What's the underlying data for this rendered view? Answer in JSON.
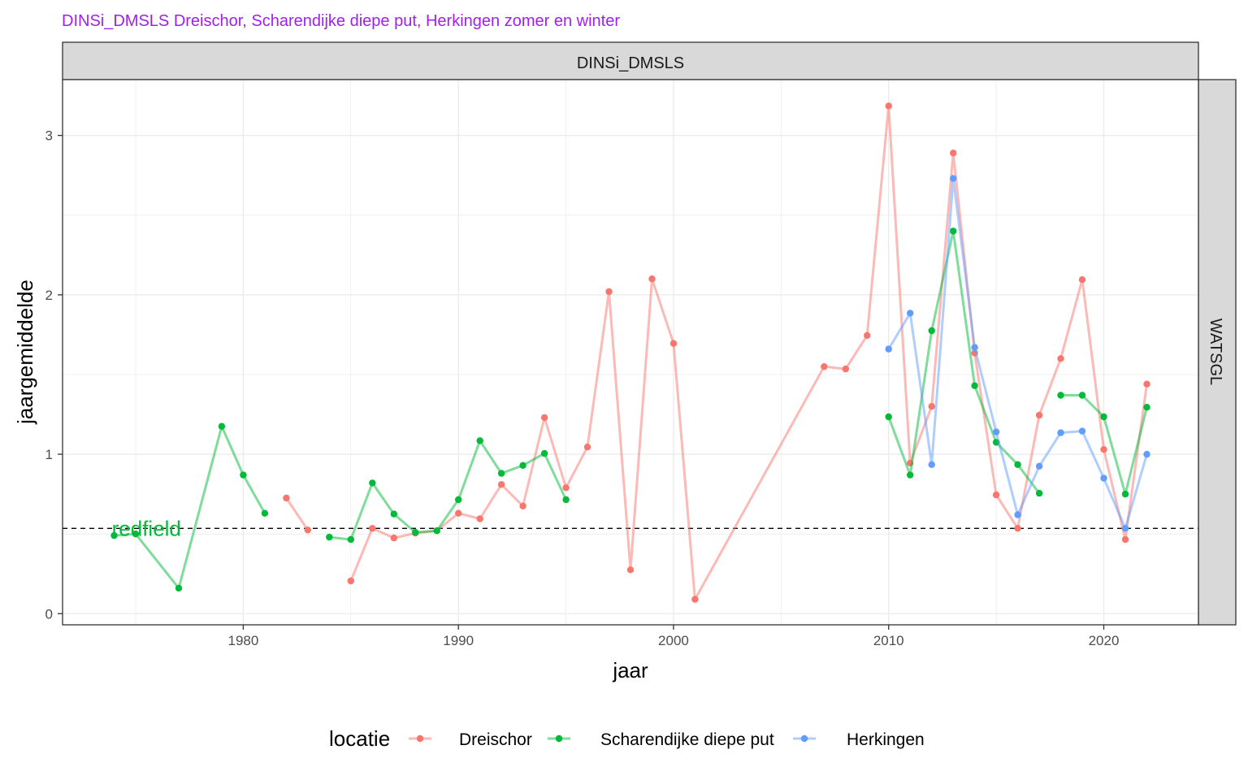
{
  "chart_data": {
    "type": "line",
    "title": "DINSi_DMSLS Dreischor, Scharendijke diepe put, Herkingen zomer en winter",
    "facet_top": "DINSi_DMSLS",
    "facet_right": "WATSGL",
    "xlabel": "jaar",
    "ylabel": "jaargemiddelde",
    "xlim": [
      1971.6,
      2024.4
    ],
    "ylim": [
      -0.07,
      3.35
    ],
    "x_ticks": [
      1980,
      1990,
      2000,
      2010,
      2020
    ],
    "x_tick_labels": [
      "1980",
      "1990",
      "2000",
      "2010",
      "2020"
    ],
    "y_ticks": [
      0,
      1,
      2,
      3
    ],
    "y_tick_labels": [
      "0",
      "1",
      "2",
      "3"
    ],
    "grid": true,
    "legend": {
      "title": "locatie",
      "position": "bottom"
    },
    "reference_line": {
      "y": 0.535,
      "label": "redfield",
      "label_x": 1975.5,
      "color": "#00BA38"
    },
    "colors": {
      "title": "#A020F0",
      "strip_fill": "#d9d9d9",
      "dreischor": "#F8766D",
      "scharendijke": "#00BA38",
      "herkingen": "#619CFF"
    },
    "series": [
      {
        "name": "Dreischor",
        "color": "#F8766D",
        "segments": [
          [
            [
              1982,
              0.725
            ],
            [
              1983,
              0.525
            ]
          ],
          [
            [
              1985,
              0.205
            ],
            [
              1986,
              0.535
            ],
            [
              1987,
              0.475
            ],
            [
              1988,
              0.505
            ],
            [
              1989,
              0.52
            ],
            [
              1990,
              0.63
            ],
            [
              1991,
              0.595
            ],
            [
              1992,
              0.81
            ],
            [
              1993,
              0.675
            ],
            [
              1994,
              1.23
            ],
            [
              1995,
              0.79
            ],
            [
              1996,
              1.045
            ],
            [
              1997,
              2.02
            ],
            [
              1998,
              0.275
            ],
            [
              1999,
              2.1
            ],
            [
              2000,
              1.695
            ],
            [
              2001,
              0.09
            ],
            [
              2007,
              1.55
            ],
            [
              2008,
              1.535
            ],
            [
              2009,
              1.745
            ],
            [
              2010,
              3.185
            ],
            [
              2011,
              0.945
            ],
            [
              2012,
              1.3
            ],
            [
              2013,
              2.89
            ],
            [
              2014,
              1.635
            ],
            [
              2015,
              0.745
            ],
            [
              2016,
              0.535
            ],
            [
              2017,
              1.245
            ],
            [
              2018,
              1.6
            ],
            [
              2019,
              2.095
            ],
            [
              2020,
              1.03
            ],
            [
              2021,
              0.465
            ],
            [
              2022,
              1.44
            ]
          ]
        ]
      },
      {
        "name": "Scharendijke diepe put",
        "color": "#00BA38",
        "segments": [
          [
            [
              1974,
              0.49
            ],
            [
              1975,
              0.5
            ],
            [
              1977,
              0.16
            ],
            [
              1979,
              1.175
            ],
            [
              1980,
              0.87
            ],
            [
              1981,
              0.63
            ]
          ],
          [
            [
              1984,
              0.48
            ],
            [
              1985,
              0.465
            ],
            [
              1986,
              0.82
            ],
            [
              1987,
              0.625
            ],
            [
              1988,
              0.51
            ],
            [
              1989,
              0.52
            ],
            [
              1990,
              0.715
            ],
            [
              1991,
              1.085
            ],
            [
              1992,
              0.88
            ],
            [
              1993,
              0.93
            ],
            [
              1994,
              1.005
            ],
            [
              1995,
              0.715
            ]
          ],
          [
            [
              2010,
              1.235
            ],
            [
              2011,
              0.87
            ],
            [
              2012,
              1.775
            ],
            [
              2013,
              2.4
            ],
            [
              2014,
              1.43
            ],
            [
              2015,
              1.075
            ],
            [
              2016,
              0.935
            ],
            [
              2017,
              0.755
            ]
          ],
          [
            [
              2018,
              1.37
            ],
            [
              2019,
              1.37
            ],
            [
              2020,
              1.235
            ],
            [
              2021,
              0.75
            ],
            [
              2022,
              1.295
            ]
          ]
        ]
      },
      {
        "name": "Herkingen",
        "color": "#619CFF",
        "segments": [
          [
            [
              2010,
              1.66
            ],
            [
              2011,
              1.885
            ],
            [
              2012,
              0.935
            ],
            [
              2013,
              2.73
            ],
            [
              2014,
              1.67
            ],
            [
              2015,
              1.14
            ],
            [
              2016,
              0.62
            ],
            [
              2017,
              0.925
            ],
            [
              2018,
              1.135
            ],
            [
              2019,
              1.145
            ],
            [
              2020,
              0.85
            ],
            [
              2021,
              0.535
            ],
            [
              2022,
              1.0
            ]
          ]
        ]
      }
    ]
  }
}
